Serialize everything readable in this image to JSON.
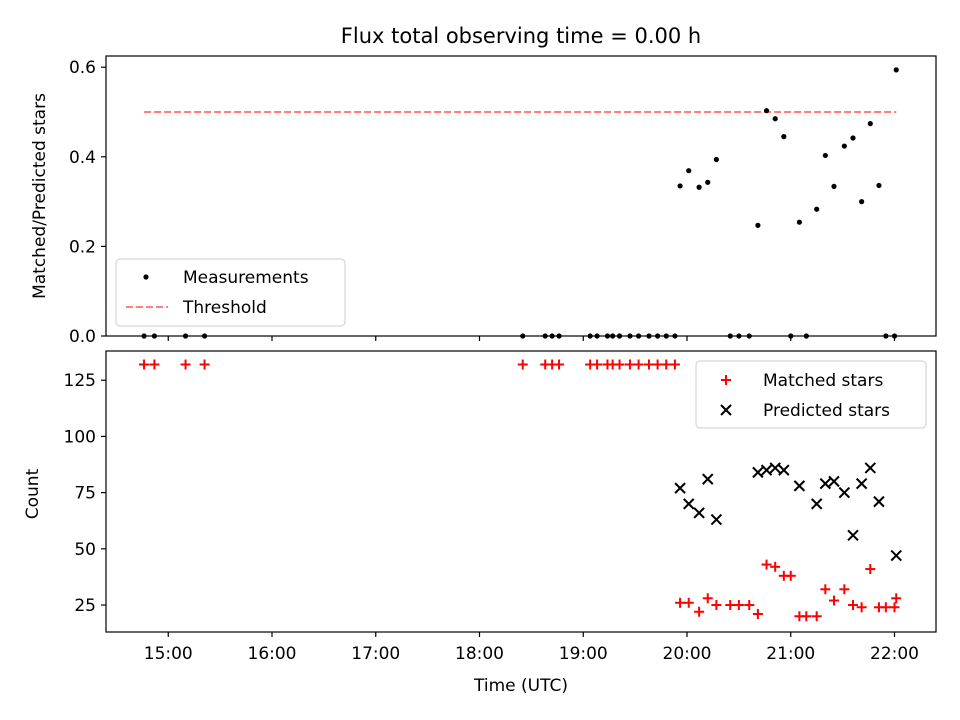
{
  "figure": {
    "title": "Flux total observing time = 0.00 h"
  },
  "chart_data": [
    {
      "type": "scatter",
      "ylabel": "Matched/Predicted stars",
      "xlim": [
        "14:24",
        "22:24"
      ],
      "ylim": [
        0,
        0.625
      ],
      "yticks": [
        0.0,
        0.2,
        0.4,
        0.6
      ],
      "yticklabels": [
        "0.0",
        "0.2",
        "0.4",
        "0.6"
      ],
      "legend": {
        "placement": "lower-left",
        "entries": [
          "Measurements",
          "Threshold"
        ]
      },
      "series": [
        {
          "name": "Measurements",
          "marker": "dot",
          "color": "#000000",
          "points": [
            [
              "14:46",
              0
            ],
            [
              "14:52",
              0
            ],
            [
              "15:10",
              0
            ],
            [
              "15:21",
              0
            ],
            [
              "18:25",
              0
            ],
            [
              "18:38",
              0
            ],
            [
              "18:42",
              0
            ],
            [
              "18:46",
              0
            ],
            [
              "19:04",
              0
            ],
            [
              "19:08",
              0
            ],
            [
              "19:14",
              0
            ],
            [
              "19:17",
              0
            ],
            [
              "19:21",
              0
            ],
            [
              "19:27",
              0
            ],
            [
              "19:32",
              0
            ],
            [
              "19:38",
              0
            ],
            [
              "19:43",
              0
            ],
            [
              "19:48",
              0
            ],
            [
              "19:53",
              0
            ],
            [
              "19:56",
              0.335
            ],
            [
              "20:01",
              0.369
            ],
            [
              "20:07",
              0.332
            ],
            [
              "20:12",
              0.343
            ],
            [
              "20:17",
              0.394
            ],
            [
              "20:25",
              0
            ],
            [
              "20:30",
              0
            ],
            [
              "20:36",
              0
            ],
            [
              "20:41",
              0.247
            ],
            [
              "20:46",
              0.503
            ],
            [
              "20:51",
              0.485
            ],
            [
              "20:56",
              0.445
            ],
            [
              "21:00",
              0
            ],
            [
              "21:05",
              0.254
            ],
            [
              "21:09",
              0
            ],
            [
              "21:15",
              0.283
            ],
            [
              "21:20",
              0.403
            ],
            [
              "21:25",
              0.334
            ],
            [
              "21:31",
              0.424
            ],
            [
              "21:36",
              0.442
            ],
            [
              "21:41",
              0.3
            ],
            [
              "21:46",
              0.474
            ],
            [
              "21:51",
              0.336
            ],
            [
              "21:55",
              0
            ],
            [
              "22:00",
              0
            ],
            [
              "22:01",
              0.594
            ]
          ]
        },
        {
          "name": "Threshold",
          "line": "dashed",
          "color": "#ff7f7f",
          "x": [
            "14:46",
            "22:01"
          ],
          "values": [
            0.5,
            0.5
          ]
        }
      ]
    },
    {
      "type": "scatter",
      "xlabel": "Time (UTC)",
      "ylabel": "Count",
      "xlim": [
        "14:24",
        "22:24"
      ],
      "ylim": [
        13,
        138
      ],
      "xticks": [
        "15:00",
        "16:00",
        "17:00",
        "18:00",
        "19:00",
        "20:00",
        "21:00",
        "22:00"
      ],
      "yticks": [
        25,
        50,
        75,
        100,
        125
      ],
      "yticklabels": [
        "25",
        "50",
        "75",
        "100",
        "125"
      ],
      "legend": {
        "placement": "upper-right",
        "entries": [
          "Matched stars",
          "Predicted stars"
        ]
      },
      "series": [
        {
          "name": "Matched stars",
          "marker": "plus",
          "color": "#ff0000",
          "points": [
            [
              "14:46",
              132
            ],
            [
              "14:52",
              132
            ],
            [
              "15:10",
              132
            ],
            [
              "15:21",
              132
            ],
            [
              "18:25",
              132
            ],
            [
              "18:38",
              132
            ],
            [
              "18:42",
              132
            ],
            [
              "18:46",
              132
            ],
            [
              "19:04",
              132
            ],
            [
              "19:08",
              132
            ],
            [
              "19:14",
              132
            ],
            [
              "19:17",
              132
            ],
            [
              "19:21",
              132
            ],
            [
              "19:27",
              132
            ],
            [
              "19:32",
              132
            ],
            [
              "19:38",
              132
            ],
            [
              "19:43",
              132
            ],
            [
              "19:48",
              132
            ],
            [
              "19:53",
              132
            ],
            [
              "19:56",
              26
            ],
            [
              "20:01",
              26
            ],
            [
              "20:07",
              22
            ],
            [
              "20:12",
              28
            ],
            [
              "20:17",
              25
            ],
            [
              "20:25",
              25
            ],
            [
              "20:30",
              25
            ],
            [
              "20:36",
              25
            ],
            [
              "20:41",
              21
            ],
            [
              "20:46",
              43
            ],
            [
              "20:51",
              42
            ],
            [
              "20:56",
              38
            ],
            [
              "21:00",
              38
            ],
            [
              "21:05",
              20
            ],
            [
              "21:09",
              20
            ],
            [
              "21:15",
              20
            ],
            [
              "21:20",
              32
            ],
            [
              "21:25",
              27
            ],
            [
              "21:31",
              32
            ],
            [
              "21:36",
              25
            ],
            [
              "21:41",
              24
            ],
            [
              "21:46",
              41
            ],
            [
              "21:51",
              24
            ],
            [
              "21:55",
              24
            ],
            [
              "22:00",
              24
            ],
            [
              "22:01",
              28
            ]
          ]
        },
        {
          "name": "Predicted stars",
          "marker": "x",
          "color": "#000000",
          "points": [
            [
              "19:56",
              77
            ],
            [
              "20:01",
              70
            ],
            [
              "20:07",
              66
            ],
            [
              "20:12",
              81
            ],
            [
              "20:17",
              63
            ],
            [
              "20:41",
              84
            ],
            [
              "20:46",
              85
            ],
            [
              "20:51",
              86
            ],
            [
              "20:56",
              85
            ],
            [
              "21:05",
              78
            ],
            [
              "21:15",
              70
            ],
            [
              "21:20",
              79
            ],
            [
              "21:25",
              80
            ],
            [
              "21:31",
              75
            ],
            [
              "21:36",
              56
            ],
            [
              "21:41",
              79
            ],
            [
              "21:46",
              86
            ],
            [
              "21:51",
              71
            ],
            [
              "22:01",
              47
            ]
          ]
        }
      ]
    }
  ]
}
